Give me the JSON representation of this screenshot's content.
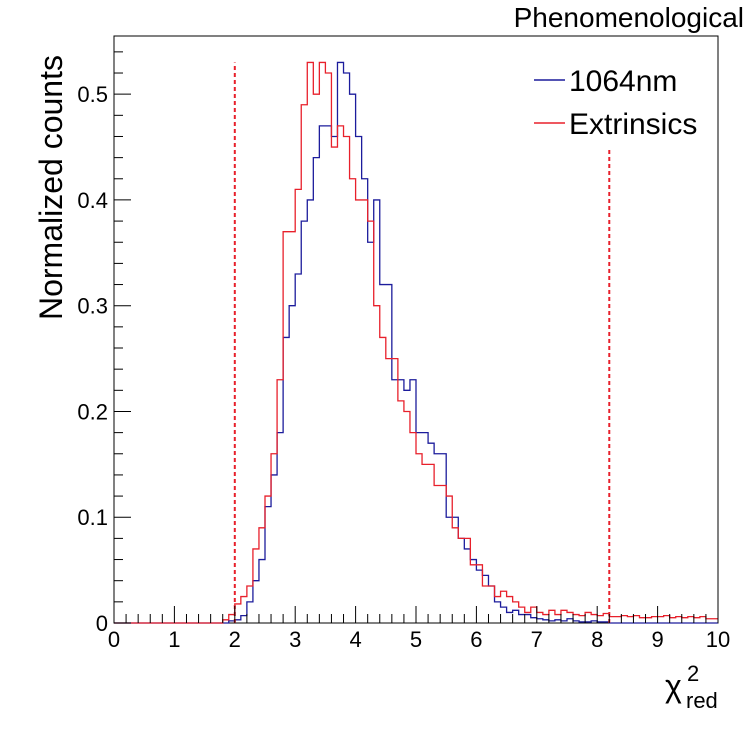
{
  "chart_data": {
    "type": "histogram",
    "title": "Phenomenological",
    "xlabel": "χ",
    "xlabel_sup": "2",
    "xlabel_sub": "red",
    "ylabel": "Normalized counts",
    "xlim": [
      0,
      10
    ],
    "ylim": [
      0,
      0.555
    ],
    "xticks": [
      0,
      1,
      2,
      3,
      4,
      5,
      6,
      7,
      8,
      9,
      10
    ],
    "xtick_labels": [
      "0",
      "1",
      "2",
      "3",
      "4",
      "5",
      "6",
      "7",
      "8",
      "9",
      "10"
    ],
    "yticks": [
      0,
      0.1,
      0.2,
      0.3,
      0.4,
      0.5
    ],
    "ytick_labels": [
      "0",
      "0.1",
      "0.2",
      "0.3",
      "0.4",
      "0.5"
    ],
    "bin_width": 0.1,
    "x_start": 0,
    "series": [
      {
        "name": "1064nm",
        "color": "#1c1c9c",
        "values": [
          0,
          0,
          0,
          0,
          0,
          0,
          0,
          0,
          0,
          0,
          0,
          0,
          0,
          0,
          0,
          0,
          0,
          0,
          0,
          0.002,
          0.003,
          0.007,
          0.02,
          0.04,
          0.06,
          0.11,
          0.14,
          0.18,
          0.27,
          0.3,
          0.33,
          0.38,
          0.4,
          0.44,
          0.47,
          0.47,
          0.46,
          0.53,
          0.52,
          0.5,
          0.46,
          0.42,
          0.36,
          0.4,
          0.32,
          0.32,
          0.23,
          0.23,
          0.22,
          0.23,
          0.18,
          0.18,
          0.17,
          0.16,
          0.16,
          0.1,
          0.1,
          0.08,
          0.07,
          0.06,
          0.05,
          0.045,
          0.035,
          0.02,
          0.015,
          0.01,
          0.012,
          0.008,
          0.008,
          0.005,
          0.004,
          0.003,
          0.002,
          0.003,
          0.002,
          0.004,
          0.002,
          0.001,
          0.001,
          0.002,
          0.001,
          0.001,
          0,
          0,
          0,
          0,
          0,
          0,
          0,
          0,
          0,
          0,
          0,
          0,
          0,
          0,
          0,
          0,
          0,
          0
        ]
      },
      {
        "name": "Extrinsics",
        "color": "#e8202b",
        "values": [
          0,
          0,
          0,
          0,
          0,
          0,
          0,
          0,
          0,
          0,
          0,
          0,
          0,
          0,
          0,
          0,
          0,
          0,
          0.003,
          0.008,
          0.018,
          0.025,
          0.035,
          0.07,
          0.09,
          0.12,
          0.16,
          0.23,
          0.37,
          0.37,
          0.41,
          0.49,
          0.53,
          0.5,
          0.53,
          0.52,
          0.45,
          0.47,
          0.46,
          0.42,
          0.4,
          0.4,
          0.38,
          0.3,
          0.27,
          0.25,
          0.25,
          0.21,
          0.2,
          0.18,
          0.16,
          0.15,
          0.15,
          0.13,
          0.13,
          0.12,
          0.09,
          0.08,
          0.08,
          0.055,
          0.055,
          0.035,
          0.035,
          0.025,
          0.03,
          0.025,
          0.02,
          0.015,
          0.01,
          0.015,
          0.01,
          0.008,
          0.012,
          0.008,
          0.012,
          0.01,
          0.008,
          0.007,
          0.01,
          0.008,
          0.007,
          0.009,
          0.006,
          0.006,
          0.007,
          0.006,
          0.007,
          0.005,
          0.005,
          0.006,
          0.006,
          0.007,
          0.005,
          0.006,
          0.005,
          0.006,
          0.005,
          0.006,
          0.004,
          0.004
        ]
      }
    ],
    "vlines": [
      {
        "x": 2.0,
        "y_top": 0.53,
        "color": "#e8202b",
        "style": "dashed"
      },
      {
        "x": 8.2,
        "y_top": 0.45,
        "color": "#e8202b",
        "style": "dashed"
      }
    ],
    "legend": {
      "position": "top-right",
      "entries": [
        "1064nm",
        "Extrinsics"
      ]
    }
  }
}
